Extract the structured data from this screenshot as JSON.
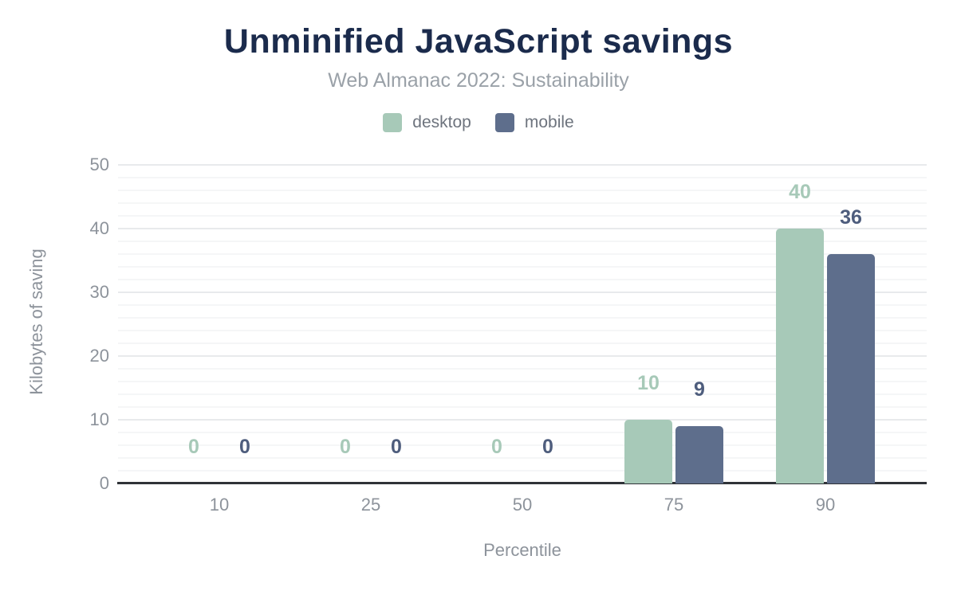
{
  "header": {
    "title": "Unminified JavaScript savings",
    "subtitle": "Web Almanac 2022: Sustainability"
  },
  "chart_data": {
    "type": "bar",
    "categories": [
      "10",
      "25",
      "50",
      "75",
      "90"
    ],
    "series": [
      {
        "name": "desktop",
        "color": "#a7c9b8",
        "label_color": "#a7c9b8",
        "values": [
          0,
          0,
          0,
          10,
          40
        ],
        "data_labels": [
          "0",
          "0",
          "0",
          "10",
          "40"
        ]
      },
      {
        "name": "mobile",
        "color": "#5e6e8c",
        "label_color": "#4e5d7d",
        "values": [
          0,
          0,
          0,
          9,
          36
        ],
        "data_labels": [
          "0",
          "0",
          "0",
          "9",
          "36"
        ]
      }
    ],
    "xlabel": "Percentile",
    "ylabel": "Kilobytes of saving",
    "ylim": [
      0,
      50
    ],
    "y_major_step": 10,
    "y_minor_step": 2,
    "y_tick_labels": [
      "0",
      "10",
      "20",
      "30",
      "40",
      "50"
    ],
    "grid": true,
    "legend_position": "top",
    "data_labels_shown": true,
    "colors": {
      "title": "#1b2b4c",
      "subtitle": "#9aa1a8",
      "tick_label": "#8d939b",
      "legend_text": "#6e747e",
      "axis_line": "#303338",
      "grid_major": "#e8eaec",
      "grid_minor": "#f5f6f7",
      "background": "#ffffff"
    }
  }
}
